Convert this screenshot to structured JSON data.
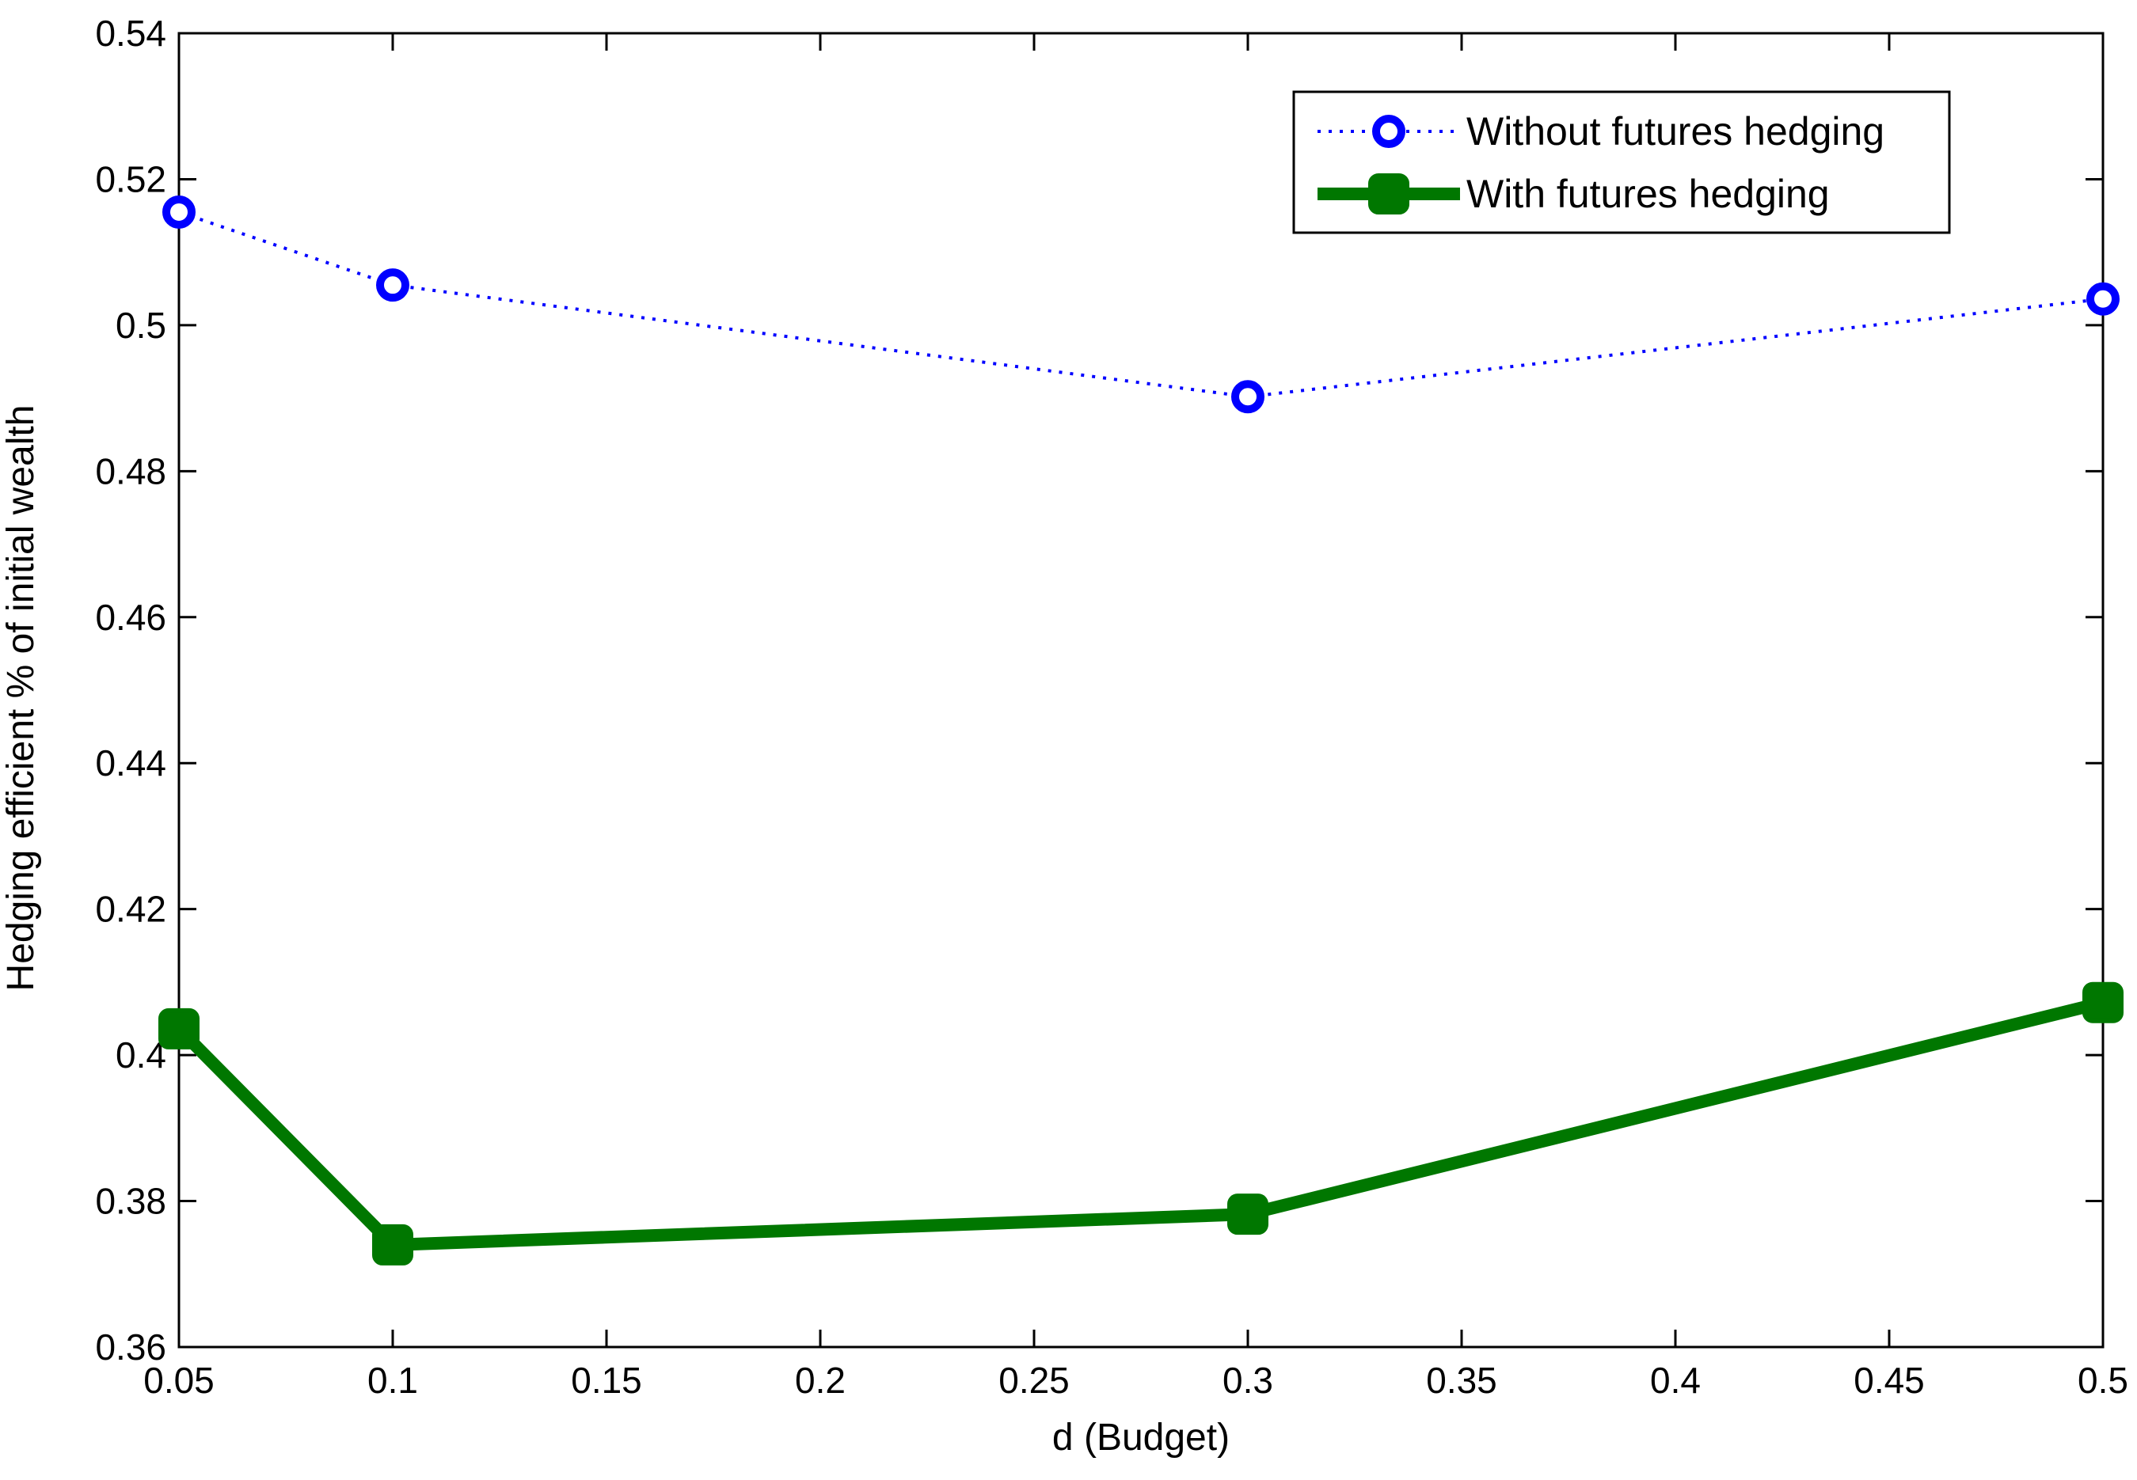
{
  "chart_data": {
    "type": "line",
    "title": "",
    "xlabel": "d  (Budget)",
    "ylabel": "Hedging efficient  % of initial wealth",
    "xlim": [
      0.05,
      0.5
    ],
    "ylim": [
      0.36,
      0.54
    ],
    "x_ticks": [
      "0.05",
      "0.1",
      "0.15",
      "0.2",
      "0.25",
      "0.3",
      "0.35",
      "0.4",
      "0.45",
      "0.5"
    ],
    "y_ticks": [
      "0.36",
      "0.38",
      "0.4",
      "0.42",
      "0.44",
      "0.46",
      "0.48",
      "0.5",
      "0.52",
      "0.54"
    ],
    "grid": false,
    "legend_position": "top-right",
    "series": [
      {
        "name": "Without futures hedging",
        "color": "#0000ff",
        "line_style": "dotted",
        "marker": "circle",
        "x": [
          0.05,
          0.1,
          0.3,
          0.5
        ],
        "y": [
          0.5155,
          0.5055,
          0.4902,
          0.5036
        ]
      },
      {
        "name": "With futures hedging",
        "color": "#007700",
        "line_style": "solid",
        "marker": "square",
        "x": [
          0.05,
          0.1,
          0.3,
          0.5
        ],
        "y": [
          0.4036,
          0.374,
          0.3782,
          0.4072
        ]
      }
    ]
  }
}
